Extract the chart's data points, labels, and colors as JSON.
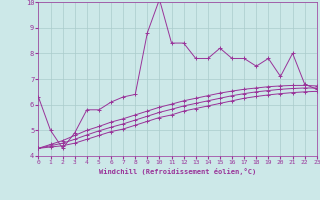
{
  "xlabel": "Windchill (Refroidissement éolien,°C)",
  "xlim": [
    0,
    23
  ],
  "ylim": [
    4,
    10
  ],
  "yticks": [
    4,
    5,
    6,
    7,
    8,
    9,
    10
  ],
  "xticks": [
    0,
    1,
    2,
    3,
    4,
    5,
    6,
    7,
    8,
    9,
    10,
    11,
    12,
    13,
    14,
    15,
    16,
    17,
    18,
    19,
    20,
    21,
    22,
    23
  ],
  "bg_color": "#cce8e8",
  "grid_color": "#aacccc",
  "line_color": "#993399",
  "line1_x": [
    0,
    1,
    2,
    3,
    4,
    5,
    6,
    7,
    8,
    9,
    10,
    11,
    12,
    13,
    14,
    15,
    16,
    17,
    18,
    19,
    20,
    21,
    22,
    23
  ],
  "line1_y": [
    6.3,
    5.0,
    4.3,
    4.9,
    5.8,
    5.8,
    6.1,
    6.3,
    6.4,
    8.8,
    10.1,
    8.4,
    8.4,
    7.8,
    7.8,
    8.2,
    7.8,
    7.8,
    7.5,
    7.8,
    7.1,
    8.0,
    6.8,
    6.6
  ],
  "line2_x": [
    0,
    1,
    2,
    3,
    4,
    5,
    6,
    7,
    8,
    9,
    10,
    11,
    12,
    13,
    14,
    15,
    16,
    17,
    18,
    19,
    20,
    21,
    22,
    23
  ],
  "line2_y": [
    4.3,
    4.35,
    4.4,
    4.5,
    4.65,
    4.8,
    4.95,
    5.05,
    5.2,
    5.35,
    5.5,
    5.6,
    5.75,
    5.85,
    5.95,
    6.05,
    6.15,
    6.25,
    6.32,
    6.38,
    6.43,
    6.47,
    6.5,
    6.52
  ],
  "line3_x": [
    0,
    1,
    2,
    3,
    4,
    5,
    6,
    7,
    8,
    9,
    10,
    11,
    12,
    13,
    14,
    15,
    16,
    17,
    18,
    19,
    20,
    21,
    22,
    23
  ],
  "line3_y": [
    4.3,
    4.4,
    4.5,
    4.65,
    4.82,
    4.98,
    5.12,
    5.25,
    5.4,
    5.55,
    5.7,
    5.82,
    5.95,
    6.05,
    6.15,
    6.25,
    6.35,
    6.43,
    6.5,
    6.55,
    6.6,
    6.63,
    6.65,
    6.65
  ],
  "line4_x": [
    0,
    1,
    2,
    3,
    4,
    5,
    6,
    7,
    8,
    9,
    10,
    11,
    12,
    13,
    14,
    15,
    16,
    17,
    18,
    19,
    20,
    21,
    22,
    23
  ],
  "line4_y": [
    4.3,
    4.45,
    4.6,
    4.8,
    5.0,
    5.15,
    5.32,
    5.45,
    5.6,
    5.75,
    5.9,
    6.02,
    6.15,
    6.25,
    6.35,
    6.45,
    6.53,
    6.6,
    6.65,
    6.7,
    6.73,
    6.75,
    6.75,
    6.73
  ]
}
